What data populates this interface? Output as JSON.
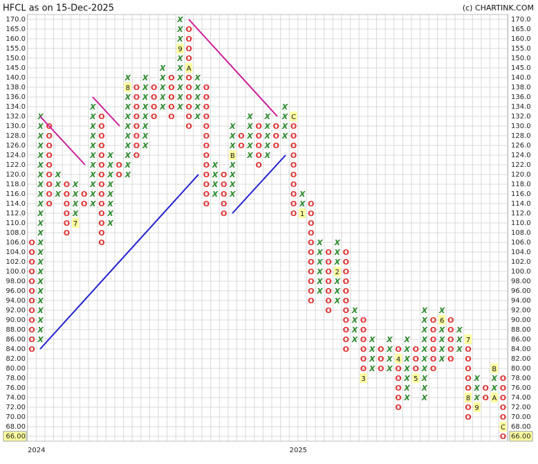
{
  "chart_data": {
    "type": "pnf",
    "title": "HFCL as on 15-Dec-2025",
    "credit": "(c) CHARTINK.COM",
    "grid": true,
    "last_price": 66,
    "x_color": "#2e8b2e",
    "o_color": "#e03030",
    "marker_color": "#ffffa0",
    "ylim": [
      66,
      170
    ],
    "yticks": [
      {
        "value": 170,
        "label": "170.0"
      },
      {
        "value": 165,
        "label": "165.0"
      },
      {
        "value": 160,
        "label": "160.0"
      },
      {
        "value": 155,
        "label": "155.0"
      },
      {
        "value": 150,
        "label": "150.0"
      },
      {
        "value": 145,
        "label": "145.0"
      },
      {
        "value": 140,
        "label": "140.0"
      },
      {
        "value": 138,
        "label": "138.0"
      },
      {
        "value": 136,
        "label": "136.0"
      },
      {
        "value": 134,
        "label": "134.0"
      },
      {
        "value": 132,
        "label": "132.0"
      },
      {
        "value": 130,
        "label": "130.0"
      },
      {
        "value": 128,
        "label": "128.0"
      },
      {
        "value": 126,
        "label": "126.0"
      },
      {
        "value": 124,
        "label": "124.0"
      },
      {
        "value": 122,
        "label": "122.0"
      },
      {
        "value": 120,
        "label": "120.0"
      },
      {
        "value": 118,
        "label": "118.0"
      },
      {
        "value": 116,
        "label": "116.0"
      },
      {
        "value": 114,
        "label": "114.0"
      },
      {
        "value": 112,
        "label": "112.0"
      },
      {
        "value": 110,
        "label": "110.0"
      },
      {
        "value": 108,
        "label": "108.0"
      },
      {
        "value": 106,
        "label": "106.0"
      },
      {
        "value": 104,
        "label": "104.0"
      },
      {
        "value": 102,
        "label": "102.0"
      },
      {
        "value": 100,
        "label": "100.0"
      },
      {
        "value": 98,
        "label": "98.00"
      },
      {
        "value": 96,
        "label": "96.00"
      },
      {
        "value": 94,
        "label": "94.00"
      },
      {
        "value": 92,
        "label": "92.00"
      },
      {
        "value": 90,
        "label": "90.00"
      },
      {
        "value": 88,
        "label": "88.00"
      },
      {
        "value": 86,
        "label": "86.00"
      },
      {
        "value": 84,
        "label": "84.00"
      },
      {
        "value": 82,
        "label": "82.00"
      },
      {
        "value": 80,
        "label": "80.00"
      },
      {
        "value": 78,
        "label": "78.00"
      },
      {
        "value": 76,
        "label": "76.00"
      },
      {
        "value": 74,
        "label": "74.00"
      },
      {
        "value": 72,
        "label": "72.00"
      },
      {
        "value": 70,
        "label": "70.00"
      },
      {
        "value": 68,
        "label": "68.00"
      },
      {
        "value": 66,
        "label": "66.00"
      }
    ],
    "columns": [
      {
        "box": "O",
        "low": 84,
        "high": 106,
        "year": "2024"
      },
      {
        "box": "X",
        "low": 86,
        "high": 132
      },
      {
        "box": "O",
        "low": 114,
        "high": 130
      },
      {
        "box": "X",
        "low": 116,
        "high": 120
      },
      {
        "box": "O",
        "low": 108,
        "high": 118
      },
      {
        "box": "X",
        "low": 110,
        "high": 118,
        "markers": [
          {
            "value": 110,
            "label": "7"
          }
        ]
      },
      {
        "box": "O",
        "low": 114,
        "high": 116
      },
      {
        "box": "X",
        "low": 114,
        "high": 134
      },
      {
        "box": "O",
        "low": 106,
        "high": 132
      },
      {
        "box": "X",
        "low": 110,
        "high": 124
      },
      {
        "box": "O",
        "low": 120,
        "high": 122
      },
      {
        "box": "X",
        "low": 120,
        "high": 140,
        "markers": [
          {
            "value": 138,
            "label": "8"
          }
        ]
      },
      {
        "box": "O",
        "low": 124,
        "high": 138
      },
      {
        "box": "X",
        "low": 126,
        "high": 140
      },
      {
        "box": "O",
        "low": 132,
        "high": 138
      },
      {
        "box": "X",
        "low": 134,
        "high": 145
      },
      {
        "box": "O",
        "low": 132,
        "high": 140
      },
      {
        "box": "X",
        "low": 134,
        "high": 170,
        "markers": [
          {
            "value": 155,
            "label": "9"
          }
        ]
      },
      {
        "box": "O",
        "low": 130,
        "high": 165,
        "markers": [
          {
            "value": 145,
            "label": "A"
          }
        ]
      },
      {
        "box": "X",
        "low": 132,
        "high": 140
      },
      {
        "box": "O",
        "low": 114,
        "high": 138
      },
      {
        "box": "X",
        "low": 116,
        "high": 122
      },
      {
        "box": "O",
        "low": 112,
        "high": 120
      },
      {
        "box": "X",
        "low": 116,
        "high": 130,
        "markers": [
          {
            "value": 124,
            "label": "B"
          }
        ]
      },
      {
        "box": "O",
        "low": 126,
        "high": 128
      },
      {
        "box": "X",
        "low": 124,
        "high": 132
      },
      {
        "box": "O",
        "low": 122,
        "high": 130
      },
      {
        "box": "X",
        "low": 124,
        "high": 132
      },
      {
        "box": "O",
        "low": 126,
        "high": 130
      },
      {
        "box": "X",
        "low": 128,
        "high": 134
      },
      {
        "box": "O",
        "low": 112,
        "high": 132,
        "year": "2025",
        "markers": [
          {
            "value": 132,
            "label": "C"
          }
        ]
      },
      {
        "box": "X",
        "low": 112,
        "high": 116,
        "markers": [
          {
            "value": 112,
            "label": "1"
          }
        ]
      },
      {
        "box": "O",
        "low": 94,
        "high": 114
      },
      {
        "box": "X",
        "low": 96,
        "high": 106
      },
      {
        "box": "O",
        "low": 92,
        "high": 104
      },
      {
        "box": "X",
        "low": 94,
        "high": 106,
        "markers": [
          {
            "value": 100,
            "label": "2"
          }
        ]
      },
      {
        "box": "O",
        "low": 84,
        "high": 104
      },
      {
        "box": "X",
        "low": 86,
        "high": 92
      },
      {
        "box": "O",
        "low": 78,
        "high": 90,
        "markers": [
          {
            "value": 78,
            "label": "3"
          }
        ]
      },
      {
        "box": "X",
        "low": 80,
        "high": 86
      },
      {
        "box": "O",
        "low": 80,
        "high": 84
      },
      {
        "box": "X",
        "low": 80,
        "high": 86
      },
      {
        "box": "O",
        "low": 72,
        "high": 84,
        "markers": [
          {
            "value": 82,
            "label": "4"
          }
        ]
      },
      {
        "box": "X",
        "low": 74,
        "high": 86
      },
      {
        "box": "O",
        "low": 78,
        "high": 84,
        "markers": [
          {
            "value": 78,
            "label": "5"
          }
        ]
      },
      {
        "box": "X",
        "low": 74,
        "high": 92
      },
      {
        "box": "O",
        "low": 80,
        "high": 90
      },
      {
        "box": "X",
        "low": 82,
        "high": 92,
        "markers": [
          {
            "value": 90,
            "label": "6"
          }
        ]
      },
      {
        "box": "O",
        "low": 82,
        "high": 90
      },
      {
        "box": "X",
        "low": 84,
        "high": 88
      },
      {
        "box": "O",
        "low": 70,
        "high": 86,
        "markers": [
          {
            "value": 86,
            "label": "7"
          },
          {
            "value": 74,
            "label": "8"
          }
        ]
      },
      {
        "box": "X",
        "low": 72,
        "high": 78,
        "markers": [
          {
            "value": 72,
            "label": "9"
          }
        ]
      },
      {
        "box": "O",
        "low": 74,
        "high": 76
      },
      {
        "box": "X",
        "low": 74,
        "high": 80,
        "markers": [
          {
            "value": 80,
            "label": "B"
          },
          {
            "value": 74,
            "label": "A"
          }
        ]
      },
      {
        "box": "O",
        "low": 66,
        "high": 78,
        "markers": [
          {
            "value": 68,
            "label": "C"
          }
        ]
      }
    ]
  }
}
